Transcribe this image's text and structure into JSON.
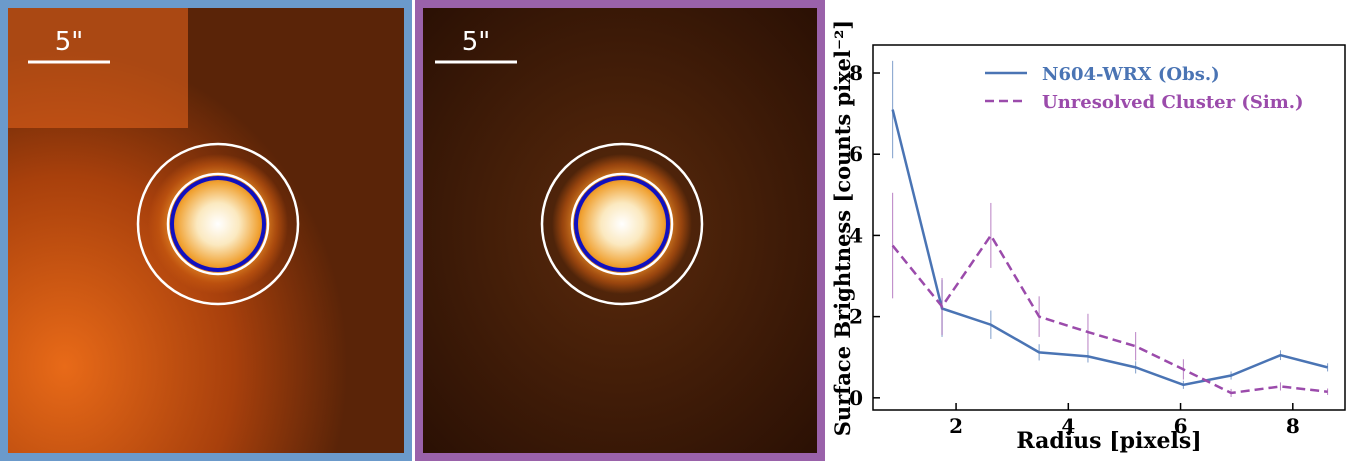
{
  "images": [
    {
      "scale_label": "5\""
    },
    {
      "scale_label": "5\""
    }
  ],
  "chart_data": {
    "type": "line",
    "x_label": "Radius [pixels]",
    "y_label": "Surface Brightness [counts pixel⁻²]",
    "x": [
      0.87,
      1.75,
      2.62,
      3.48,
      4.35,
      5.2,
      6.05,
      6.9,
      7.78,
      8.62
    ],
    "series": [
      {
        "name": "N604-WRX (Obs.)",
        "color": "#4a74b4",
        "dash": false,
        "values": [
          7.1,
          2.2,
          1.8,
          1.12,
          1.02,
          0.75,
          0.32,
          0.55,
          1.05,
          0.75
        ],
        "errors": [
          1.2,
          0.7,
          0.35,
          0.2,
          0.15,
          0.15,
          0.1,
          0.1,
          0.12,
          0.1
        ]
      },
      {
        "name": "Unresolved Cluster (Sim.)",
        "color": "#9b4bab",
        "dash": true,
        "values": [
          3.75,
          2.25,
          4.0,
          2.0,
          1.62,
          1.27,
          0.7,
          0.12,
          0.28,
          0.15
        ],
        "errors": [
          1.3,
          0.7,
          0.8,
          0.5,
          0.45,
          0.35,
          0.25,
          0.1,
          0.1,
          0.08
        ]
      }
    ],
    "xlim": [
      0.52,
      8.93
    ],
    "ylim": [
      -0.3,
      8.69
    ],
    "xticks": [
      2,
      4,
      6,
      8
    ],
    "yticks": [
      0,
      2,
      4,
      6,
      8
    ],
    "legend": "upper right"
  }
}
